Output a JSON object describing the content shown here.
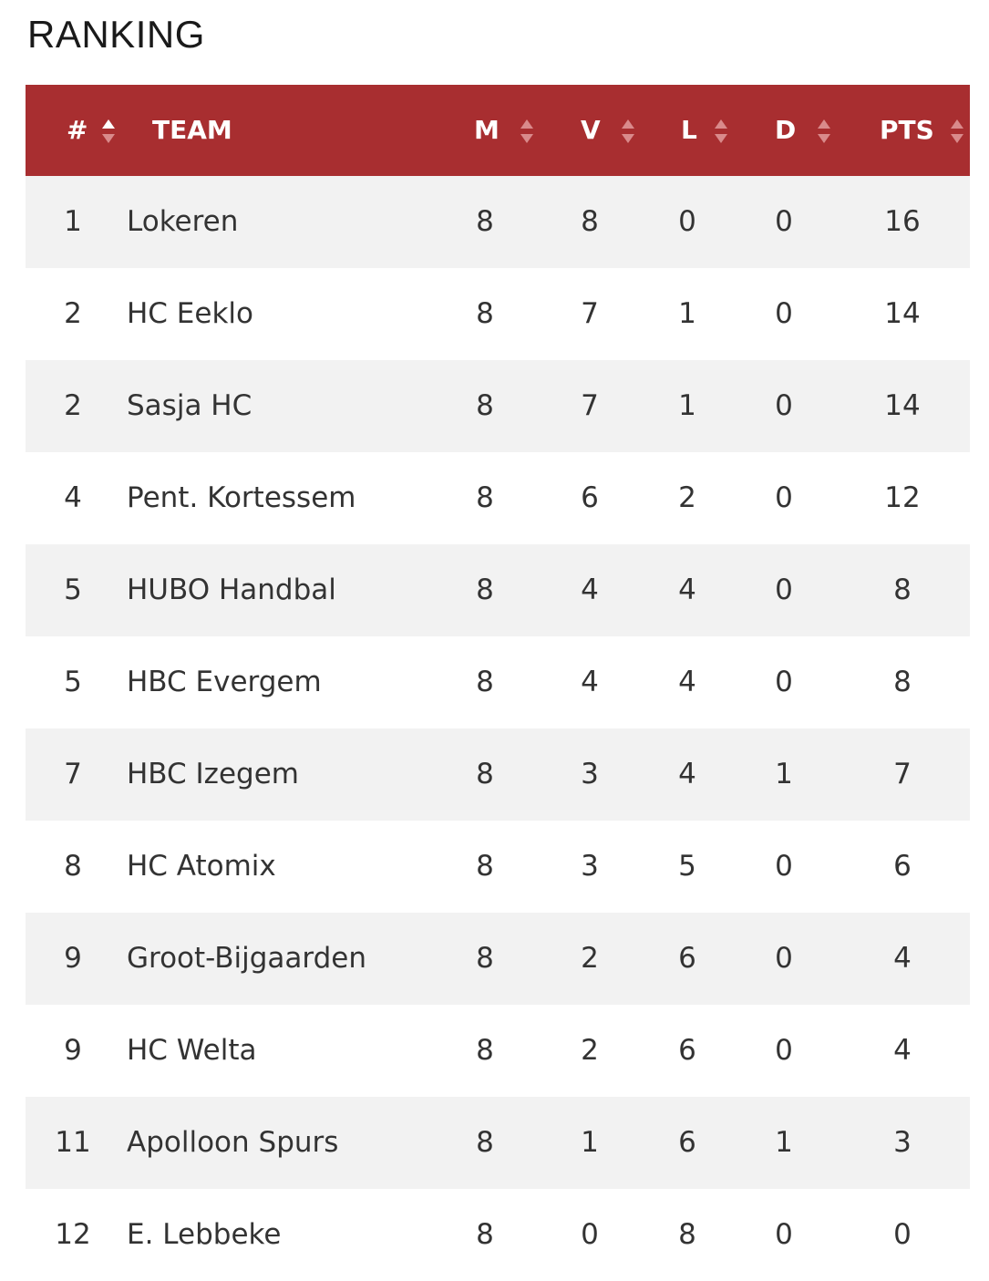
{
  "title": "RANKING",
  "columns": {
    "rank": "#",
    "team": "TEAM",
    "m": "M",
    "v": "V",
    "l": "L",
    "d": "D",
    "pts": "PTS"
  },
  "colors": {
    "header_bg": "#a82e30",
    "header_text": "#ffffff",
    "row_alt_bg": "#f2f2f2",
    "sort_active": "#ffffff",
    "sort_inactive": "#d98a8b"
  },
  "rows": [
    {
      "rank": "1",
      "team": "Lokeren",
      "m": "8",
      "v": "8",
      "l": "0",
      "d": "0",
      "pts": "16"
    },
    {
      "rank": "2",
      "team": "HC Eeklo",
      "m": "8",
      "v": "7",
      "l": "1",
      "d": "0",
      "pts": "14"
    },
    {
      "rank": "2",
      "team": "Sasja HC",
      "m": "8",
      "v": "7",
      "l": "1",
      "d": "0",
      "pts": "14"
    },
    {
      "rank": "4",
      "team": "Pent. Kortessem",
      "m": "8",
      "v": "6",
      "l": "2",
      "d": "0",
      "pts": "12"
    },
    {
      "rank": "5",
      "team": "HUBO Handbal",
      "m": "8",
      "v": "4",
      "l": "4",
      "d": "0",
      "pts": "8"
    },
    {
      "rank": "5",
      "team": "HBC Evergem",
      "m": "8",
      "v": "4",
      "l": "4",
      "d": "0",
      "pts": "8"
    },
    {
      "rank": "7",
      "team": "HBC Izegem",
      "m": "8",
      "v": "3",
      "l": "4",
      "d": "1",
      "pts": "7"
    },
    {
      "rank": "8",
      "team": "HC Atomix",
      "m": "8",
      "v": "3",
      "l": "5",
      "d": "0",
      "pts": "6"
    },
    {
      "rank": "9",
      "team": "Groot-Bijgaarden",
      "m": "8",
      "v": "2",
      "l": "6",
      "d": "0",
      "pts": "4"
    },
    {
      "rank": "9",
      "team": "HC Welta",
      "m": "8",
      "v": "2",
      "l": "6",
      "d": "0",
      "pts": "4"
    },
    {
      "rank": "11",
      "team": "Apolloon Spurs",
      "m": "8",
      "v": "1",
      "l": "6",
      "d": "1",
      "pts": "3"
    },
    {
      "rank": "12",
      "team": "E. Lebbeke",
      "m": "8",
      "v": "0",
      "l": "8",
      "d": "0",
      "pts": "0"
    }
  ]
}
